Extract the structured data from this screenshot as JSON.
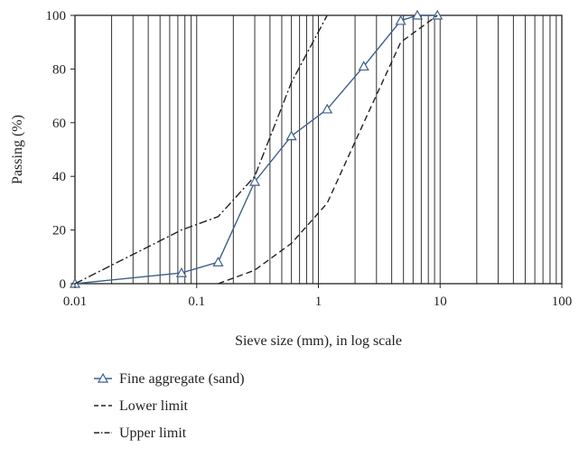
{
  "chart_data": {
    "type": "line",
    "title": "",
    "xlabel": "Sieve size (mm), in log scale",
    "ylabel": "Passing (%)",
    "xscale": "log",
    "xlim": [
      0.01,
      100
    ],
    "ylim": [
      0,
      100
    ],
    "x_ticks": [
      {
        "value": 0.01,
        "label": "0.01"
      },
      {
        "value": 0.1,
        "label": "0.1"
      },
      {
        "value": 1,
        "label": "1"
      },
      {
        "value": 10,
        "label": "10"
      },
      {
        "value": 100,
        "label": "100"
      }
    ],
    "y_ticks": [
      0,
      20,
      40,
      60,
      80,
      100
    ],
    "grid": "vertical lines at sieve sizes (log minor ticks), no horizontal grid",
    "legend_position": "below",
    "series": [
      {
        "name": "Fine aggregate (sand)",
        "style": "solid",
        "marker": "triangle",
        "color": "#3f5f8a",
        "x": [
          0.01,
          0.075,
          0.15,
          0.3,
          0.6,
          1.18,
          2.36,
          4.75,
          6.5,
          9.5
        ],
        "y": [
          0,
          4,
          8,
          38,
          55,
          65,
          81,
          98,
          100,
          100
        ]
      },
      {
        "name": "Lower limit",
        "style": "dashed",
        "marker": "none",
        "color": "#222222",
        "x": [
          0.15,
          0.3,
          0.6,
          1.18,
          2.36,
          4.75,
          9.5
        ],
        "y": [
          0,
          5,
          15,
          30,
          60,
          90,
          100
        ]
      },
      {
        "name": "Upper limit",
        "style": "dashdot",
        "marker": "none",
        "color": "#222222",
        "x": [
          0.01,
          0.075,
          0.15,
          0.3,
          0.6,
          1.18
        ],
        "y": [
          0,
          20,
          25,
          40,
          75,
          100
        ]
      }
    ]
  }
}
